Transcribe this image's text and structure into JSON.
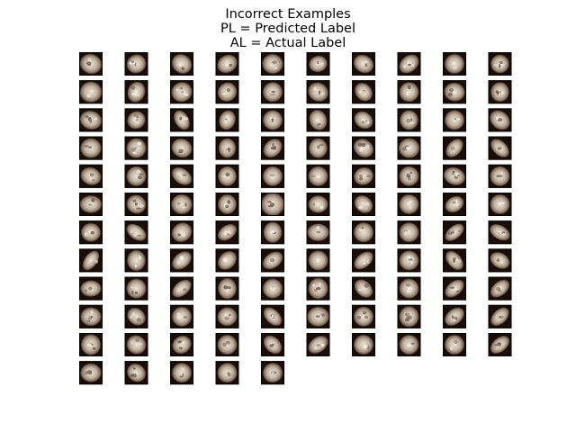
{
  "chart_data": {
    "type": "image-grid",
    "title_lines": [
      "Incorrect Examples",
      "PL = Predicted Label",
      "AL = Actual Label"
    ],
    "grid": {
      "rows": 12,
      "columns": 10,
      "filled_tiles": 115
    },
    "tile_style": {
      "colormap": "pink",
      "border": "#000000"
    },
    "tiles": [
      {
        "s": 1,
        "a": 20,
        "x": 0.95,
        "y": 0.85,
        "n": 3
      },
      {
        "s": 2,
        "a": -30,
        "x": 0.85,
        "y": 0.8,
        "n": 5
      },
      {
        "s": 3,
        "a": 40,
        "x": 0.9,
        "y": 0.8,
        "n": 2
      },
      {
        "s": 4,
        "a": 60,
        "x": 0.75,
        "y": 0.9,
        "n": 3
      },
      {
        "s": 5,
        "a": 10,
        "x": 0.9,
        "y": 0.85,
        "n": 4
      },
      {
        "s": 6,
        "a": -15,
        "x": 0.8,
        "y": 0.7,
        "n": 2
      },
      {
        "s": 7,
        "a": 30,
        "x": 0.9,
        "y": 0.75,
        "n": 3
      },
      {
        "s": 8,
        "a": -40,
        "x": 0.95,
        "y": 0.7,
        "n": 4
      },
      {
        "s": 9,
        "a": 0,
        "x": 0.85,
        "y": 0.85,
        "n": 2
      },
      {
        "s": 10,
        "a": 0,
        "x": 0.8,
        "y": 0.8,
        "n": 6
      },
      {
        "s": 11,
        "a": 0,
        "x": 0.95,
        "y": 0.9,
        "n": 2
      },
      {
        "s": 12,
        "a": 20,
        "x": 0.75,
        "y": 0.9,
        "n": 4
      },
      {
        "s": 13,
        "a": -20,
        "x": 0.9,
        "y": 0.85,
        "n": 5
      },
      {
        "s": 14,
        "a": 45,
        "x": 0.8,
        "y": 0.85,
        "n": 3
      },
      {
        "s": 15,
        "a": -10,
        "x": 0.85,
        "y": 0.85,
        "n": 3
      },
      {
        "s": 16,
        "a": 30,
        "x": 0.9,
        "y": 0.8,
        "n": 3
      },
      {
        "s": 17,
        "a": 50,
        "x": 0.85,
        "y": 0.7,
        "n": 4
      },
      {
        "s": 18,
        "a": -20,
        "x": 0.85,
        "y": 0.85,
        "n": 2
      },
      {
        "s": 19,
        "a": 10,
        "x": 0.9,
        "y": 0.8,
        "n": 3
      },
      {
        "s": 20,
        "a": 0,
        "x": 0.8,
        "y": 0.85,
        "n": 5
      },
      {
        "s": 21,
        "a": 15,
        "x": 0.95,
        "y": 0.8,
        "n": 4
      },
      {
        "s": 22,
        "a": -35,
        "x": 0.8,
        "y": 0.75,
        "n": 5
      },
      {
        "s": 23,
        "a": 60,
        "x": 0.9,
        "y": 0.6,
        "n": 3
      },
      {
        "s": 24,
        "a": 20,
        "x": 0.7,
        "y": 0.85,
        "n": 4
      },
      {
        "s": 25,
        "a": 30,
        "x": 0.85,
        "y": 0.85,
        "n": 2
      },
      {
        "s": 26,
        "a": -20,
        "x": 0.75,
        "y": 0.9,
        "n": 3
      },
      {
        "s": 27,
        "a": 35,
        "x": 0.85,
        "y": 0.7,
        "n": 4
      },
      {
        "s": 28,
        "a": 0,
        "x": 0.8,
        "y": 0.85,
        "n": 3
      },
      {
        "s": 29,
        "a": 0,
        "x": 0.85,
        "y": 0.85,
        "n": 2
      },
      {
        "s": 30,
        "a": 40,
        "x": 0.95,
        "y": 0.75,
        "n": 3
      },
      {
        "s": 31,
        "a": 0,
        "x": 0.9,
        "y": 0.85,
        "n": 2
      },
      {
        "s": 32,
        "a": -20,
        "x": 0.85,
        "y": 0.85,
        "n": 5
      },
      {
        "s": 33,
        "a": 25,
        "x": 0.9,
        "y": 0.8,
        "n": 2
      },
      {
        "s": 34,
        "a": 0,
        "x": 0.75,
        "y": 0.85,
        "n": 3
      },
      {
        "s": 35,
        "a": -45,
        "x": 0.9,
        "y": 0.7,
        "n": 4
      },
      {
        "s": 36,
        "a": 0,
        "x": 0.8,
        "y": 0.85,
        "n": 2
      },
      {
        "s": 37,
        "a": 35,
        "x": 0.9,
        "y": 0.75,
        "n": 4
      },
      {
        "s": 38,
        "a": 0,
        "x": 0.9,
        "y": 0.85,
        "n": 3
      },
      {
        "s": 39,
        "a": -50,
        "x": 0.9,
        "y": 0.6,
        "n": 2
      },
      {
        "s": 40,
        "a": 45,
        "x": 0.95,
        "y": 0.6,
        "n": 2
      },
      {
        "s": 41,
        "a": 20,
        "x": 0.9,
        "y": 0.75,
        "n": 4
      },
      {
        "s": 42,
        "a": 0,
        "x": 0.85,
        "y": 0.85,
        "n": 3
      },
      {
        "s": 43,
        "a": 35,
        "x": 0.95,
        "y": 0.65,
        "n": 2
      },
      {
        "s": 44,
        "a": 0,
        "x": 0.8,
        "y": 0.85,
        "n": 3
      },
      {
        "s": 45,
        "a": 0,
        "x": 0.85,
        "y": 0.85,
        "n": 3
      },
      {
        "s": 46,
        "a": 0,
        "x": 0.85,
        "y": 0.85,
        "n": 2
      },
      {
        "s": 47,
        "a": -20,
        "x": 0.85,
        "y": 0.75,
        "n": 3
      },
      {
        "s": 48,
        "a": 0,
        "x": 0.85,
        "y": 0.85,
        "n": 4
      },
      {
        "s": 49,
        "a": 20,
        "x": 0.95,
        "y": 0.75,
        "n": 5
      },
      {
        "s": 50,
        "a": 0,
        "x": 0.85,
        "y": 0.85,
        "n": 3
      },
      {
        "s": 51,
        "a": 0,
        "x": 0.95,
        "y": 0.75,
        "n": 3
      },
      {
        "s": 52,
        "a": 30,
        "x": 0.85,
        "y": 0.8,
        "n": 4
      },
      {
        "s": 53,
        "a": 0,
        "x": 0.9,
        "y": 0.85,
        "n": 3
      },
      {
        "s": 54,
        "a": 0,
        "x": 0.8,
        "y": 0.85,
        "n": 3
      },
      {
        "s": 55,
        "a": 0,
        "x": 1.0,
        "y": 1.0,
        "n": 5
      },
      {
        "s": 56,
        "a": 0,
        "x": 0.85,
        "y": 0.75,
        "n": 3
      },
      {
        "s": 57,
        "a": 40,
        "x": 0.85,
        "y": 0.7,
        "n": 2
      },
      {
        "s": 58,
        "a": -30,
        "x": 0.85,
        "y": 0.85,
        "n": 3
      },
      {
        "s": 59,
        "a": -30,
        "x": 0.85,
        "y": 0.65,
        "n": 4
      },
      {
        "s": 60,
        "a": 0,
        "x": 0.85,
        "y": 0.85,
        "n": 3
      },
      {
        "s": 61,
        "a": 0,
        "x": 0.85,
        "y": 0.8,
        "n": 3
      },
      {
        "s": 62,
        "a": 35,
        "x": 0.95,
        "y": 0.6,
        "n": 3
      },
      {
        "s": 63,
        "a": -35,
        "x": 0.9,
        "y": 0.8,
        "n": 2
      },
      {
        "s": 64,
        "a": -35,
        "x": 0.9,
        "y": 0.6,
        "n": 3
      },
      {
        "s": 65,
        "a": 0,
        "x": 0.8,
        "y": 0.9,
        "n": 3
      },
      {
        "s": 66,
        "a": 0,
        "x": 0.95,
        "y": 0.75,
        "n": 2
      },
      {
        "s": 67,
        "a": 0,
        "x": 0.85,
        "y": 0.85,
        "n": 3
      },
      {
        "s": 68,
        "a": 0,
        "x": 0.85,
        "y": 0.85,
        "n": 2
      },
      {
        "s": 69,
        "a": -40,
        "x": 0.95,
        "y": 0.55,
        "n": 5
      },
      {
        "s": 70,
        "a": 30,
        "x": 0.95,
        "y": 0.6,
        "n": 4
      },
      {
        "s": 71,
        "a": -55,
        "x": 0.95,
        "y": 0.55,
        "n": 2
      },
      {
        "s": 72,
        "a": 0,
        "x": 0.8,
        "y": 0.9,
        "n": 3
      },
      {
        "s": 73,
        "a": -40,
        "x": 0.95,
        "y": 0.65,
        "n": 3
      },
      {
        "s": 74,
        "a": -45,
        "x": 0.9,
        "y": 0.7,
        "n": 3
      },
      {
        "s": 75,
        "a": -35,
        "x": 0.95,
        "y": 0.65,
        "n": 3
      },
      {
        "s": 76,
        "a": 0,
        "x": 0.85,
        "y": 0.85,
        "n": 2
      },
      {
        "s": 77,
        "a": -40,
        "x": 0.95,
        "y": 0.6,
        "n": 2
      },
      {
        "s": 78,
        "a": 0,
        "x": 0.85,
        "y": 0.85,
        "n": 6
      },
      {
        "s": 79,
        "a": 50,
        "x": 0.95,
        "y": 0.6,
        "n": 4
      },
      {
        "s": 80,
        "a": 30,
        "x": 0.9,
        "y": 0.65,
        "n": 3
      },
      {
        "s": 81,
        "a": 0,
        "x": 0.9,
        "y": 0.7,
        "n": 4
      },
      {
        "s": 82,
        "a": 0,
        "x": 0.85,
        "y": 0.85,
        "n": 3
      },
      {
        "s": 83,
        "a": -40,
        "x": 0.95,
        "y": 0.6,
        "n": 2
      },
      {
        "s": 84,
        "a": 0,
        "x": 0.8,
        "y": 0.9,
        "n": 3
      },
      {
        "s": 85,
        "a": 0,
        "x": 0.85,
        "y": 0.85,
        "n": 3
      },
      {
        "s": 86,
        "a": 0,
        "x": 0.85,
        "y": 0.9,
        "n": 4
      },
      {
        "s": 87,
        "a": 45,
        "x": 0.9,
        "y": 0.65,
        "n": 2
      },
      {
        "s": 88,
        "a": 0,
        "x": 0.85,
        "y": 0.85,
        "n": 3
      },
      {
        "s": 89,
        "a": -40,
        "x": 0.95,
        "y": 0.6,
        "n": 3
      },
      {
        "s": 90,
        "a": -40,
        "x": 0.95,
        "y": 0.6,
        "n": 3
      },
      {
        "s": 91,
        "a": 0,
        "x": 0.9,
        "y": 0.8,
        "n": 5
      },
      {
        "s": 92,
        "a": 40,
        "x": 0.85,
        "y": 0.7,
        "n": 3
      },
      {
        "s": 93,
        "a": 0,
        "x": 0.85,
        "y": 0.85,
        "n": 3
      },
      {
        "s": 94,
        "a": -10,
        "x": 0.85,
        "y": 0.8,
        "n": 3
      },
      {
        "s": 95,
        "a": 45,
        "x": 0.95,
        "y": 0.6,
        "n": 3
      },
      {
        "s": 96,
        "a": 0,
        "x": 0.95,
        "y": 0.85,
        "n": 3
      },
      {
        "s": 97,
        "a": 0,
        "x": 0.85,
        "y": 0.85,
        "n": 3
      },
      {
        "s": 98,
        "a": 0,
        "x": 0.85,
        "y": 0.9,
        "n": 4
      },
      {
        "s": 99,
        "a": -40,
        "x": 0.95,
        "y": 0.65,
        "n": 3
      },
      {
        "s": 100,
        "a": -45,
        "x": 0.95,
        "y": 0.6,
        "n": 2
      },
      {
        "s": 101,
        "a": 0,
        "x": 0.85,
        "y": 0.9,
        "n": 3
      },
      {
        "s": 102,
        "a": 30,
        "x": 0.85,
        "y": 0.8,
        "n": 3
      },
      {
        "s": 103,
        "a": -35,
        "x": 0.85,
        "y": 0.75,
        "n": 4
      },
      {
        "s": 104,
        "a": 0,
        "x": 0.85,
        "y": 0.85,
        "n": 3
      },
      {
        "s": 105,
        "a": 45,
        "x": 0.9,
        "y": 0.65,
        "n": 3
      },
      {
        "s": 106,
        "a": -35,
        "x": 0.95,
        "y": 0.65,
        "n": 3
      },
      {
        "s": 107,
        "a": 0,
        "x": 0.85,
        "y": 0.85,
        "n": 3
      },
      {
        "s": 108,
        "a": 0,
        "x": 0.85,
        "y": 0.85,
        "n": 3
      },
      {
        "s": 109,
        "a": 0,
        "x": 0.85,
        "y": 0.85,
        "n": 3
      },
      {
        "s": 110,
        "a": -40,
        "x": 0.95,
        "y": 0.6,
        "n": 3
      },
      {
        "s": 111,
        "a": 0,
        "x": 0.9,
        "y": 0.8,
        "n": 3
      },
      {
        "s": 112,
        "a": 40,
        "x": 0.85,
        "y": 0.75,
        "n": 3
      },
      {
        "s": 113,
        "a": 0,
        "x": 0.85,
        "y": 0.85,
        "n": 3
      },
      {
        "s": 114,
        "a": 0,
        "x": 0.85,
        "y": 0.85,
        "n": 3
      },
      {
        "s": 115,
        "a": 0,
        "x": 0.85,
        "y": 0.85,
        "n": 3
      }
    ]
  }
}
